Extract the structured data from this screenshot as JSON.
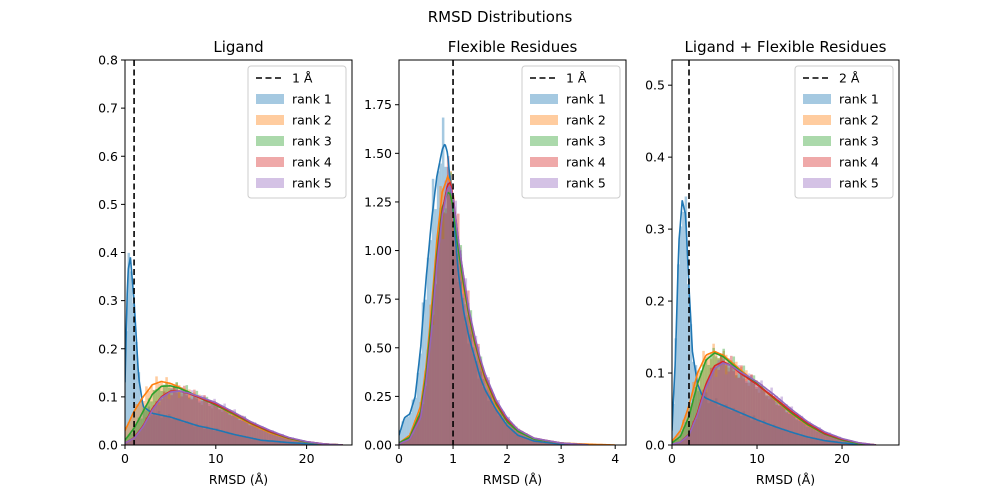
{
  "suptitle": "RMSD Distributions",
  "chart_data": [
    {
      "type": "histogram+kde",
      "title": "Ligand",
      "xlabel": "RMSD (Å)",
      "ylabel": "",
      "xlim": [
        0,
        25
      ],
      "ylim": [
        0,
        0.8
      ],
      "xticks": [
        "0",
        "10",
        "20"
      ],
      "xtick_values": [
        0,
        10,
        20
      ],
      "yticks": [
        "0.0",
        "0.1",
        "0.2",
        "0.3",
        "0.4",
        "0.5",
        "0.6",
        "0.7",
        "0.8"
      ],
      "ytick_values": [
        0,
        0.1,
        0.2,
        0.3,
        0.4,
        0.5,
        0.6,
        0.7,
        0.8
      ],
      "cutoff": {
        "x": 1,
        "label": "1 Å"
      },
      "legend_position": "top-right",
      "series": [
        {
          "name": "rank 1",
          "color": "#1f77b4",
          "x": [
            0,
            0.3,
            0.6,
            1,
            1.5,
            2,
            3,
            4,
            5,
            6,
            8,
            10,
            12,
            15,
            18,
            20,
            22,
            24
          ],
          "y": [
            0.13,
            0.36,
            0.39,
            0.3,
            0.14,
            0.08,
            0.066,
            0.062,
            0.058,
            0.052,
            0.04,
            0.032,
            0.022,
            0.01,
            0.005,
            0.003,
            0.001,
            0
          ]
        },
        {
          "name": "rank 2",
          "color": "#ff7f0e",
          "x": [
            0,
            1,
            2,
            3,
            4,
            5,
            6,
            7,
            8,
            10,
            12,
            14,
            16,
            18,
            20,
            22,
            24
          ],
          "y": [
            0.03,
            0.07,
            0.1,
            0.125,
            0.132,
            0.128,
            0.12,
            0.11,
            0.1,
            0.083,
            0.062,
            0.042,
            0.025,
            0.013,
            0.006,
            0.002,
            0
          ]
        },
        {
          "name": "rank 3",
          "color": "#2ca02c",
          "x": [
            0,
            1,
            2,
            3,
            4,
            5,
            6,
            7,
            8,
            10,
            12,
            14,
            16,
            18,
            20,
            22,
            24
          ],
          "y": [
            0.01,
            0.035,
            0.07,
            0.105,
            0.122,
            0.123,
            0.118,
            0.11,
            0.1,
            0.083,
            0.064,
            0.044,
            0.027,
            0.014,
            0.006,
            0.002,
            0
          ]
        },
        {
          "name": "rank 4",
          "color": "#d62728",
          "x": [
            0,
            1,
            2,
            3,
            4,
            5,
            6,
            7,
            8,
            10,
            12,
            14,
            16,
            18,
            20,
            22,
            24
          ],
          "y": [
            0.004,
            0.015,
            0.04,
            0.075,
            0.1,
            0.112,
            0.112,
            0.107,
            0.1,
            0.085,
            0.066,
            0.045,
            0.028,
            0.015,
            0.007,
            0.002,
            0
          ]
        },
        {
          "name": "rank 5",
          "color": "#9467bd",
          "x": [
            0,
            1,
            2,
            3,
            4,
            5,
            6,
            7,
            8,
            10,
            12,
            14,
            16,
            18,
            20,
            22,
            24
          ],
          "y": [
            0.004,
            0.014,
            0.038,
            0.072,
            0.098,
            0.11,
            0.112,
            0.108,
            0.102,
            0.088,
            0.068,
            0.047,
            0.03,
            0.016,
            0.007,
            0.002,
            0
          ]
        }
      ]
    },
    {
      "type": "histogram+kde",
      "title": "Flexible Residues",
      "xlabel": "RMSD (Å)",
      "ylabel": "",
      "xlim": [
        0,
        4.2
      ],
      "ylim": [
        0,
        1.98
      ],
      "xticks": [
        "0",
        "1",
        "2",
        "3",
        "4"
      ],
      "xtick_values": [
        0,
        1,
        2,
        3,
        4
      ],
      "yticks": [
        "0.00",
        "0.25",
        "0.50",
        "0.75",
        "1.00",
        "1.25",
        "1.50",
        "1.75"
      ],
      "ytick_values": [
        0,
        0.25,
        0.5,
        0.75,
        1.0,
        1.25,
        1.5,
        1.75
      ],
      "cutoff": {
        "x": 1,
        "label": "1 Å"
      },
      "legend_position": "top-right",
      "series": [
        {
          "name": "rank 1",
          "color": "#1f77b4",
          "x": [
            0,
            0.1,
            0.2,
            0.3,
            0.4,
            0.5,
            0.6,
            0.7,
            0.8,
            0.85,
            0.9,
            1.0,
            1.1,
            1.2,
            1.3,
            1.4,
            1.5,
            1.6,
            1.8,
            2.0,
            2.2,
            2.5,
            3.0,
            3.5
          ],
          "y": [
            0.05,
            0.14,
            0.16,
            0.25,
            0.5,
            0.85,
            1.15,
            1.38,
            1.52,
            1.55,
            1.5,
            1.2,
            0.88,
            0.68,
            0.55,
            0.45,
            0.35,
            0.28,
            0.18,
            0.1,
            0.05,
            0.02,
            0.005,
            0
          ]
        },
        {
          "name": "rank 2",
          "color": "#ff7f0e",
          "x": [
            0,
            0.2,
            0.4,
            0.5,
            0.6,
            0.7,
            0.8,
            0.9,
            0.95,
            1.0,
            1.1,
            1.2,
            1.3,
            1.4,
            1.5,
            1.6,
            1.8,
            2.0,
            2.2,
            2.5,
            3.0,
            3.5,
            4.0
          ],
          "y": [
            0.01,
            0.05,
            0.2,
            0.4,
            0.7,
            1.05,
            1.3,
            1.38,
            1.35,
            1.25,
            1.0,
            0.8,
            0.65,
            0.52,
            0.42,
            0.33,
            0.2,
            0.12,
            0.07,
            0.03,
            0.01,
            0.004,
            0
          ]
        },
        {
          "name": "rank 3",
          "color": "#2ca02c",
          "x": [
            0,
            0.2,
            0.4,
            0.5,
            0.6,
            0.7,
            0.8,
            0.9,
            0.95,
            1.0,
            1.1,
            1.2,
            1.3,
            1.4,
            1.5,
            1.6,
            1.8,
            2.0,
            2.2,
            2.5,
            3.0,
            3.5
          ],
          "y": [
            0.01,
            0.04,
            0.17,
            0.36,
            0.65,
            0.98,
            1.22,
            1.3,
            1.29,
            1.22,
            1.0,
            0.82,
            0.66,
            0.53,
            0.43,
            0.34,
            0.21,
            0.12,
            0.07,
            0.03,
            0.01,
            0
          ]
        },
        {
          "name": "rank 4",
          "color": "#d62728",
          "x": [
            0,
            0.2,
            0.4,
            0.5,
            0.6,
            0.7,
            0.8,
            0.9,
            0.95,
            1.0,
            1.1,
            1.2,
            1.3,
            1.4,
            1.5,
            1.6,
            1.8,
            2.0,
            2.2,
            2.5,
            3.0,
            3.5
          ],
          "y": [
            0.005,
            0.03,
            0.15,
            0.33,
            0.6,
            0.95,
            1.2,
            1.34,
            1.35,
            1.28,
            1.05,
            0.85,
            0.68,
            0.55,
            0.44,
            0.35,
            0.22,
            0.13,
            0.08,
            0.035,
            0.01,
            0
          ]
        },
        {
          "name": "rank 5",
          "color": "#9467bd",
          "x": [
            0,
            0.2,
            0.4,
            0.5,
            0.6,
            0.7,
            0.8,
            0.9,
            0.95,
            1.0,
            1.1,
            1.2,
            1.3,
            1.4,
            1.5,
            1.6,
            1.8,
            2.0,
            2.2,
            2.5,
            3.0,
            3.5
          ],
          "y": [
            0.005,
            0.03,
            0.14,
            0.32,
            0.58,
            0.92,
            1.18,
            1.32,
            1.33,
            1.27,
            1.05,
            0.86,
            0.69,
            0.56,
            0.45,
            0.36,
            0.23,
            0.14,
            0.08,
            0.035,
            0.01,
            0
          ]
        }
      ]
    },
    {
      "type": "histogram+kde",
      "title": "Ligand + Flexible Residues",
      "xlabel": "RMSD (Å)",
      "ylabel": "",
      "xlim": [
        0,
        26.7
      ],
      "ylim": [
        0,
        0.535
      ],
      "xticks": [
        "0",
        "10",
        "20"
      ],
      "xtick_values": [
        0,
        10,
        20
      ],
      "yticks": [
        "0.0",
        "0.1",
        "0.2",
        "0.3",
        "0.4",
        "0.5"
      ],
      "ytick_values": [
        0,
        0.1,
        0.2,
        0.3,
        0.4,
        0.5
      ],
      "cutoff": {
        "x": 2,
        "label": "2 Å"
      },
      "legend_position": "top-right",
      "series": [
        {
          "name": "rank 1",
          "color": "#1f77b4",
          "x": [
            0,
            0.4,
            0.8,
            1.2,
            1.6,
            2.0,
            2.4,
            3,
            3.5,
            4,
            5,
            6,
            8,
            10,
            12,
            14,
            16,
            18,
            20,
            22,
            24
          ],
          "y": [
            0.02,
            0.12,
            0.28,
            0.34,
            0.32,
            0.22,
            0.13,
            0.085,
            0.07,
            0.065,
            0.06,
            0.055,
            0.045,
            0.035,
            0.026,
            0.018,
            0.011,
            0.006,
            0.003,
            0.001,
            0
          ]
        },
        {
          "name": "rank 2",
          "color": "#ff7f0e",
          "x": [
            0,
            1,
            2,
            3,
            4,
            5,
            6,
            7,
            8,
            10,
            12,
            14,
            16,
            18,
            20,
            22,
            24
          ],
          "y": [
            0.005,
            0.02,
            0.055,
            0.1,
            0.125,
            0.13,
            0.125,
            0.115,
            0.105,
            0.085,
            0.064,
            0.044,
            0.027,
            0.015,
            0.007,
            0.002,
            0
          ]
        },
        {
          "name": "rank 3",
          "color": "#2ca02c",
          "x": [
            0,
            1,
            2,
            3,
            4,
            5,
            6,
            7,
            8,
            10,
            12,
            14,
            16,
            18,
            20,
            22,
            24
          ],
          "y": [
            0.003,
            0.012,
            0.04,
            0.085,
            0.118,
            0.128,
            0.123,
            0.113,
            0.103,
            0.085,
            0.065,
            0.045,
            0.028,
            0.015,
            0.007,
            0.002,
            0
          ]
        },
        {
          "name": "rank 4",
          "color": "#d62728",
          "x": [
            0,
            1,
            2,
            3,
            4,
            5,
            6,
            7,
            8,
            10,
            12,
            14,
            16,
            18,
            20,
            22,
            24
          ],
          "y": [
            0.001,
            0.004,
            0.015,
            0.045,
            0.085,
            0.11,
            0.116,
            0.11,
            0.1,
            0.084,
            0.066,
            0.047,
            0.03,
            0.016,
            0.008,
            0.003,
            0
          ]
        },
        {
          "name": "rank 5",
          "color": "#9467bd",
          "x": [
            0,
            1,
            2,
            3,
            4,
            5,
            6,
            7,
            8,
            10,
            12,
            14,
            16,
            18,
            20,
            22,
            24
          ],
          "y": [
            0.001,
            0.004,
            0.014,
            0.042,
            0.08,
            0.106,
            0.114,
            0.11,
            0.102,
            0.088,
            0.07,
            0.05,
            0.032,
            0.018,
            0.009,
            0.003,
            0
          ]
        }
      ]
    }
  ]
}
